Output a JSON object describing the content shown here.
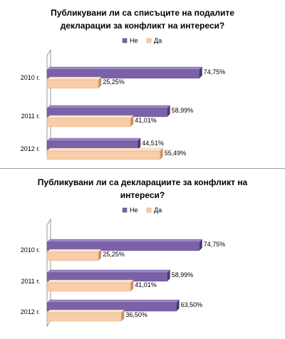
{
  "colors": {
    "ne": "#7b62a8",
    "ne_dark": "#4d3a72",
    "ne_top": "#9b85c6",
    "da": "#f9cda7",
    "da_dark": "#c8946a",
    "da_top": "#fde5cf",
    "axis": "#808080",
    "text": "#000000"
  },
  "chart_data": [
    {
      "type": "bar",
      "orientation": "horizontal",
      "title": "Публикувани ли са списъците на подалите декларации за конфликт на интереси?",
      "title_lines": [
        "Публикувани ли са списъците на подалите",
        "декларации за конфликт на интереси?"
      ],
      "categories": [
        "2010 г.",
        "2011 г.",
        "2012 г."
      ],
      "series": [
        {
          "name": "Не",
          "values": [
            74.75,
            58.99,
            44.51
          ],
          "labels": [
            "74,75%",
            "58,99%",
            "44,51%"
          ]
        },
        {
          "name": "Да",
          "values": [
            25.25,
            41.01,
            55.49
          ],
          "labels": [
            "25,25%",
            "41,01%",
            "55,49%"
          ]
        }
      ],
      "xlim": [
        0,
        100
      ],
      "legend_position": "top",
      "style": "3d"
    },
    {
      "type": "bar",
      "orientation": "horizontal",
      "title": "Публикувани ли са декларациите за конфликт на интереси?",
      "title_lines": [
        "Публикувани ли са декларациите за конфликт на",
        "интереси?"
      ],
      "categories": [
        "2010 г.",
        "2011 г.",
        "2012 г."
      ],
      "series": [
        {
          "name": "Не",
          "values": [
            74.75,
            58.99,
            63.5
          ],
          "labels": [
            "74,75%",
            "58,99%",
            "63,50%"
          ]
        },
        {
          "name": "Да",
          "values": [
            25.25,
            41.01,
            36.5
          ],
          "labels": [
            "25,25%",
            "41,01%",
            "36,50%"
          ]
        }
      ],
      "xlim": [
        0,
        100
      ],
      "legend_position": "top",
      "style": "3d"
    }
  ]
}
